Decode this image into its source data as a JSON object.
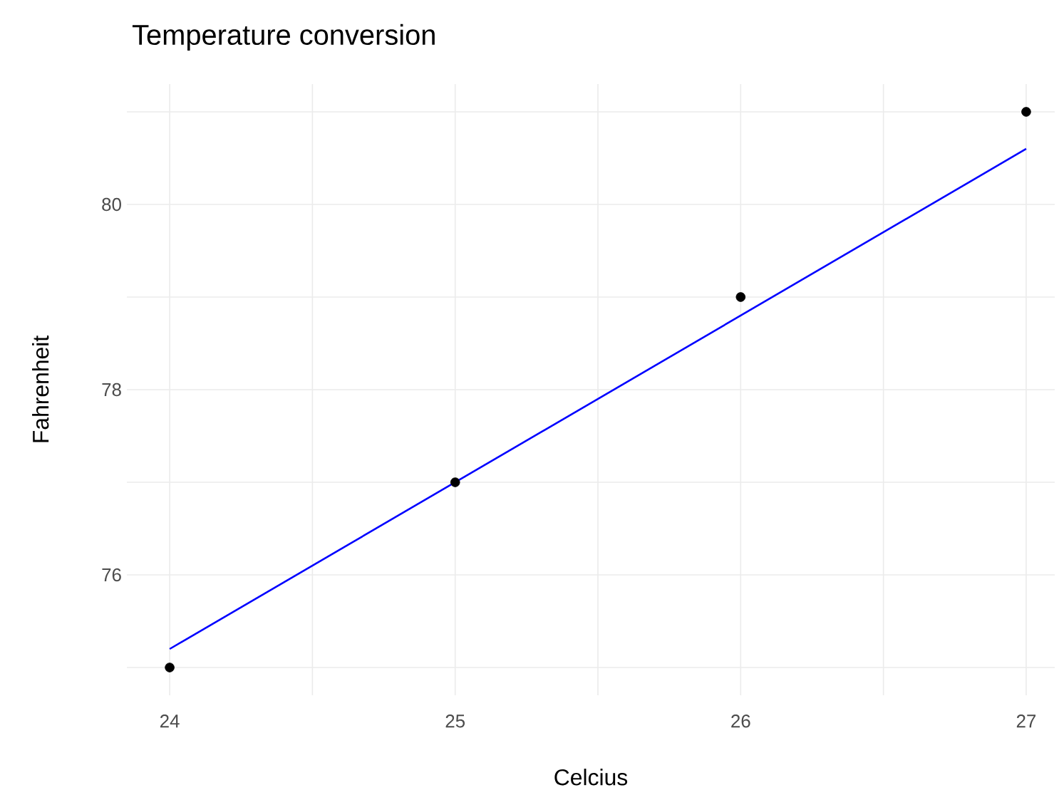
{
  "chart_data": {
    "type": "scatter",
    "title": "Temperature conversion",
    "xlabel": "Celcius",
    "ylabel": "Fahrenheit",
    "x": [
      24,
      25,
      26,
      27
    ],
    "series": [
      {
        "type": "scatter",
        "color": "#000000",
        "values": [
          75,
          77,
          79,
          81
        ],
        "marker": "circle"
      },
      {
        "type": "line",
        "color": "#0000ff",
        "x": [
          24,
          27
        ],
        "values": [
          75.2,
          80.6
        ],
        "marker": "none",
        "line_style": "solid"
      }
    ],
    "xlim": [
      23.85,
      27.1
    ],
    "ylim": [
      74.7,
      81.3
    ],
    "xticks": [
      24,
      {
        "value": 24.5,
        "label": null
      },
      25,
      {
        "value": 25.5,
        "label": null
      },
      26,
      {
        "value": 26.5,
        "label": null
      },
      27
    ],
    "yticks": [
      {
        "value": 75,
        "label": null
      },
      76,
      {
        "value": 77,
        "label": null
      },
      78,
      {
        "value": 79,
        "label": null
      },
      80,
      {
        "value": 81,
        "label": null
      }
    ],
    "grid": true
  }
}
